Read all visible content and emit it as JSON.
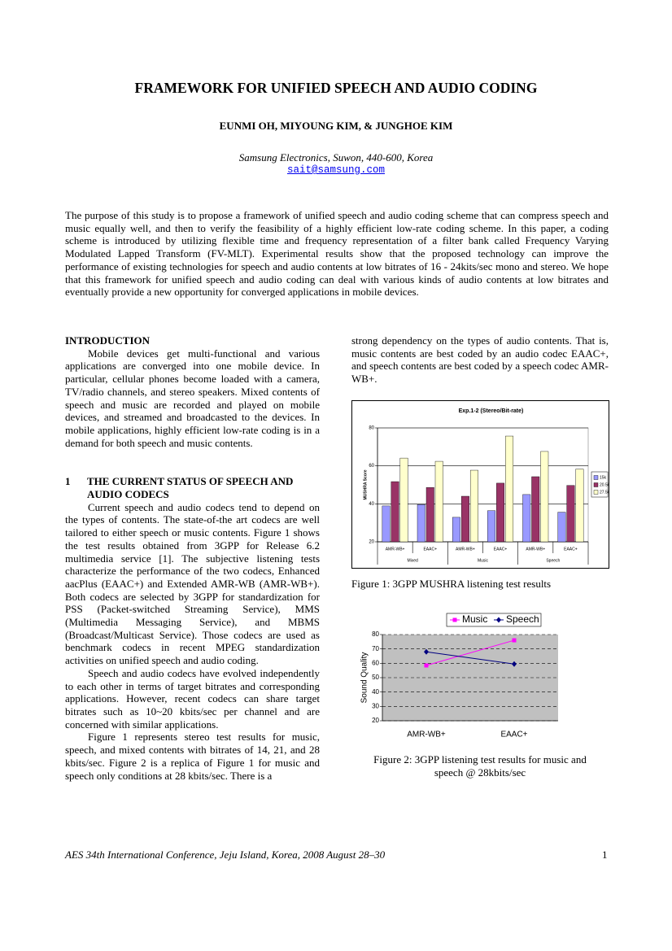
{
  "title": "FRAMEWORK FOR UNIFIED SPEECH AND AUDIO CODING",
  "authors": "EUNMI OH, MIYOUNG KIM, & JUNGHOE KIM",
  "affiliation": "Samsung Electronics, Suwon, 440-600, Korea",
  "email": "sait@samsung.com",
  "abstract": "The purpose of this study is to propose a framework of unified speech and audio coding scheme that can compress speech and music equally well, and then to verify the feasibility of a highly efficient low-rate coding scheme. In this paper, a coding scheme is introduced by utilizing flexible time and frequency representation of a filter bank called Frequency Varying Modulated Lapped Transform (FV-MLT). Experimental results show that the proposed technology can improve the performance of existing technologies for speech and audio contents at low bitrates of 16 - 24kits/sec mono and stereo. We hope that this framework for unified speech and audio coding can deal with various kinds of audio contents at low bitrates and eventually provide a new opportunity for converged applications in mobile devices.",
  "sections": [
    {
      "heading": "INTRODUCTION",
      "paragraphs": [
        "Mobile devices get multi-functional and various applications are converged into one mobile device. In particular, cellular phones become loaded with a camera, TV/radio channels, and stereo speakers. Mixed contents of speech and music are recorded and played on mobile devices, and streamed and broadcasted to the devices. In mobile applications, highly efficient low-rate coding is in a demand for both speech and music contents."
      ]
    },
    {
      "number": "1",
      "heading": "THE CURRENT STATUS OF SPEECH AND AUDIO CODECS",
      "paragraphs": [
        "Current speech and audio codecs tend to depend on the types of contents. The state-of-the art codecs are well tailored to either speech or music contents. Figure 1 shows the test results obtained from 3GPP for Release 6.2 multimedia service [1]. The subjective listening tests characterize the performance of the two codecs, Enhanced aacPlus (EAAC+) and Extended AMR-WB (AMR-WB+). Both codecs are selected by 3GPP for standardization for PSS (Packet-switched Streaming Service), MMS (Multimedia Messaging Service), and MBMS (Broadcast/Multicast Service). Those codecs are used as benchmark codecs in recent MPEG standardization activities on unified speech and audio coding.",
        "Speech and audio codecs have evolved independently to each other in terms of target bitrates and corresponding applications. However, recent codecs can share target bitrates such as 10~20 kbits/sec per channel and are concerned with similar applications.",
        "Figure 1 represents stereo test results for music, speech, and mixed contents with bitrates of 14, 21, and 28 kbits/sec. Figure 2 is a replica of Figure 1 for music and speech only conditions at 28 kbits/sec. There is a"
      ]
    }
  ],
  "continuation": "strong dependency on the types of audio contents. That is, music contents are best coded by an audio codec EAAC+, and speech contents are best coded by a speech codec AMR-WB+.",
  "chart_data": [
    {
      "type": "bar",
      "title": "Exp.1-2 (Stereo/Bit-rate)",
      "y_label": "MUSHRA Score",
      "categories": [
        "AMR-WB+",
        "EAAC+",
        "AMR-WB+",
        "EAAC+",
        "AMR-WB+",
        "EAAC+"
      ],
      "groups": [
        "Mixed",
        "Music",
        "Speech"
      ],
      "series": [
        {
          "name": "15k",
          "color": "#9999ff",
          "values": [
            38.9,
            39.6,
            32.9,
            36.4,
            44.9,
            35.6
          ]
        },
        {
          "name": "20.5k",
          "color": "#993366",
          "values": [
            51.7,
            48.6,
            44,
            50.9,
            54.3,
            49.7
          ]
        },
        {
          "name": "27.5k",
          "color": "#ffffcc",
          "values": [
            64.1,
            62.4,
            57.7,
            75.7,
            67.6,
            58.3
          ]
        }
      ],
      "ylim": [
        20,
        80
      ],
      "yticks": [
        20,
        40,
        60,
        80
      ],
      "grid": true,
      "legend": "right",
      "caption": "Figure 1: 3GPP MUSHRA listening test results"
    },
    {
      "type": "line",
      "y_label": "Sound Quality",
      "categories": [
        "AMR-WB+",
        "EAAC+"
      ],
      "series": [
        {
          "name": "Music",
          "color": "#ff00ff",
          "marker": "square",
          "values": [
            58.5,
            76
          ]
        },
        {
          "name": "Speech",
          "color": "#000080",
          "marker": "diamond",
          "values": [
            68,
            59.5
          ]
        }
      ],
      "ylim": [
        20,
        80
      ],
      "yticks": [
        20,
        30,
        40,
        50,
        60,
        70,
        80
      ],
      "grid": true,
      "legend": "top",
      "plot_background": "#c0c0c0",
      "caption": "Figure 2: 3GPP listening test results for music and speech @ 28kbits/sec"
    }
  ],
  "footer": {
    "conference": "AES 34th International Conference, Jeju Island, Korea, 2008 August 28–30",
    "page": "1"
  }
}
